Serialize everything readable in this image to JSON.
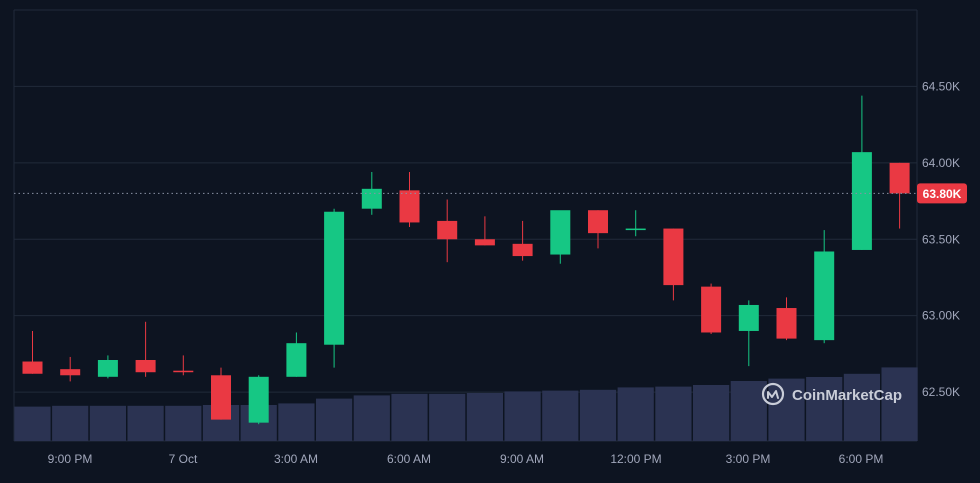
{
  "chart_data": {
    "type": "candlestick",
    "x_ticks": [
      "9:00 PM",
      "7 Oct",
      "3:00 AM",
      "6:00 AM",
      "9:00 AM",
      "12:00 PM",
      "3:00 PM",
      "6:00 PM"
    ],
    "y_ticks": [
      "64.50K",
      "64.00K",
      "63.50K",
      "63.00K",
      "62.50K"
    ],
    "y_tick_values": [
      64500,
      64000,
      63500,
      63000,
      62500
    ],
    "ylim": [
      62180,
      65000
    ],
    "grid": true,
    "current_price": 63800,
    "current_price_label": "63.80K",
    "watermark": "CoinMarketCap",
    "colors": {
      "background": "#0d1421",
      "up": "#16c784",
      "down": "#ea3943",
      "volume": "#2b3352",
      "grid": "#212a3a",
      "axis_text": "#a1a7bb"
    },
    "candles": [
      {
        "o": 62700,
        "h": 62900,
        "l": 62620,
        "c": 62620
      },
      {
        "o": 62650,
        "h": 62730,
        "l": 62570,
        "c": 62610
      },
      {
        "o": 62600,
        "h": 62740,
        "l": 62590,
        "c": 62710
      },
      {
        "o": 62710,
        "h": 62960,
        "l": 62600,
        "c": 62630
      },
      {
        "o": 62640,
        "h": 62740,
        "l": 62610,
        "c": 62630
      },
      {
        "o": 62610,
        "h": 62660,
        "l": 62320,
        "c": 62320
      },
      {
        "o": 62300,
        "h": 62610,
        "l": 62290,
        "c": 62600
      },
      {
        "o": 62600,
        "h": 62890,
        "l": 62600,
        "c": 62820
      },
      {
        "o": 62810,
        "h": 63700,
        "l": 62660,
        "c": 63680
      },
      {
        "o": 63700,
        "h": 63940,
        "l": 63660,
        "c": 63830
      },
      {
        "o": 63820,
        "h": 63940,
        "l": 63580,
        "c": 63610
      },
      {
        "o": 63620,
        "h": 63760,
        "l": 63350,
        "c": 63500
      },
      {
        "o": 63500,
        "h": 63650,
        "l": 63460,
        "c": 63460
      },
      {
        "o": 63470,
        "h": 63620,
        "l": 63360,
        "c": 63390
      },
      {
        "o": 63400,
        "h": 63680,
        "l": 63340,
        "c": 63690
      },
      {
        "o": 63690,
        "h": 63690,
        "l": 63440,
        "c": 63540
      },
      {
        "o": 63560,
        "h": 63690,
        "l": 63520,
        "c": 63570
      },
      {
        "o": 63570,
        "h": 63570,
        "l": 63100,
        "c": 63200
      },
      {
        "o": 63190,
        "h": 63210,
        "l": 62880,
        "c": 62890
      },
      {
        "o": 62900,
        "h": 63100,
        "l": 62670,
        "c": 63070
      },
      {
        "o": 63050,
        "h": 63120,
        "l": 62840,
        "c": 62850
      },
      {
        "o": 62840,
        "h": 63560,
        "l": 62820,
        "c": 63420
      },
      {
        "o": 63430,
        "h": 64440,
        "l": 63430,
        "c": 64070
      },
      {
        "o": 64000,
        "h": 64000,
        "l": 63570,
        "c": 63800
      }
    ],
    "volume_relative": [
      0.43,
      0.44,
      0.44,
      0.44,
      0.44,
      0.45,
      0.45,
      0.47,
      0.53,
      0.57,
      0.59,
      0.59,
      0.6,
      0.62,
      0.63,
      0.64,
      0.67,
      0.68,
      0.7,
      0.75,
      0.78,
      0.8,
      0.84,
      0.92
    ]
  }
}
